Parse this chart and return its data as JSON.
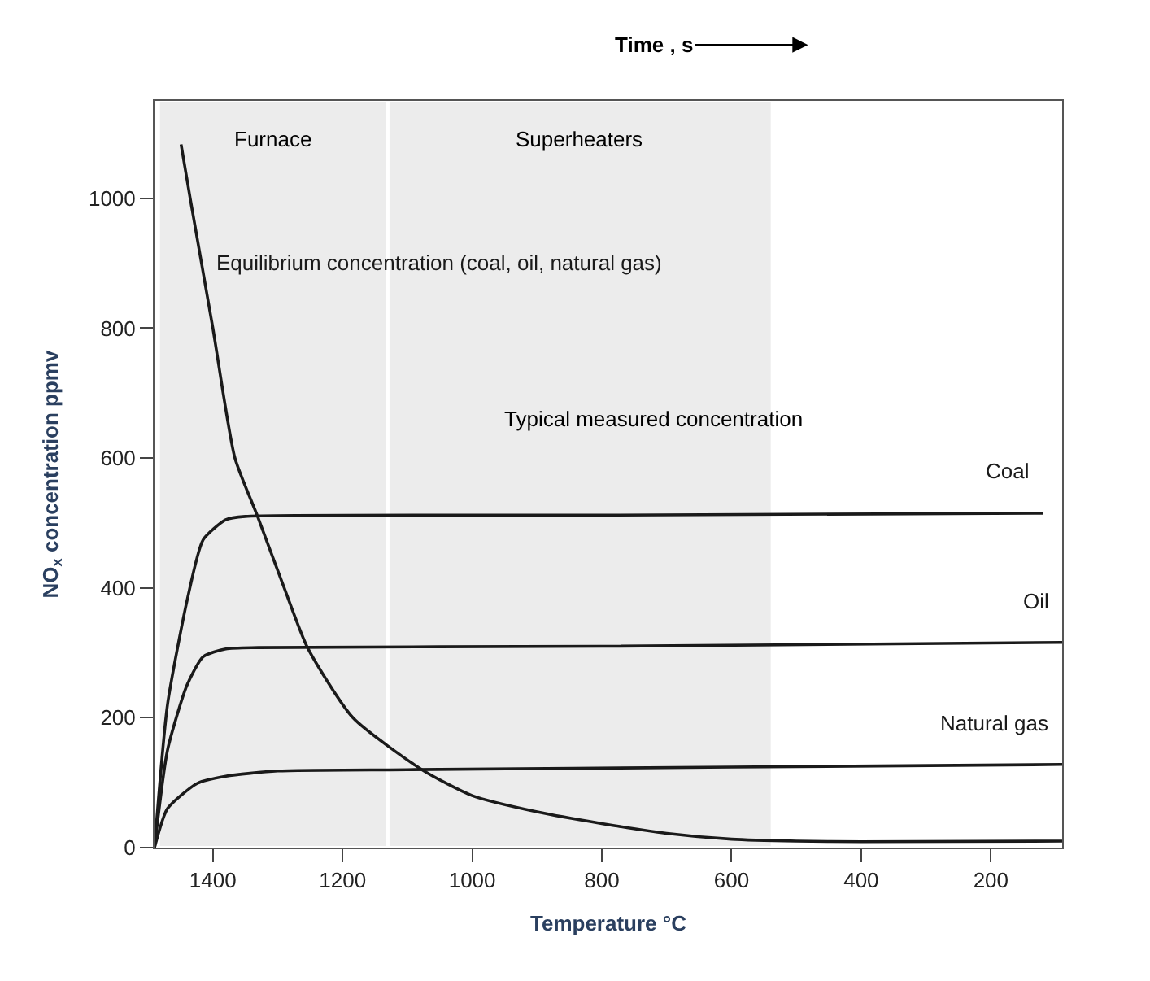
{
  "chart_data": {
    "type": "line",
    "xlabel": "Temperature °C",
    "ylabel": "NO$_{x}$ concentration ppmv",
    "xlim": [
      1490,
      90
    ],
    "xticks": [
      1400,
      1200,
      1000,
      800,
      600,
      400,
      200
    ],
    "ylim": [
      0,
      1150
    ],
    "yticks": [
      0,
      200,
      400,
      600,
      800,
      1000
    ],
    "grid": false,
    "legend": false,
    "marker": "none",
    "line_style": "solid",
    "annotations": [
      "Time , s",
      "Typical measured concentration"
    ],
    "bands": [
      {
        "axis": "x",
        "from": 1484,
        "to": 1130,
        "label": "Furnace",
        "color": "#000000"
      },
      {
        "axis": "x",
        "from": 1130,
        "to": 537,
        "label": "Superheaters",
        "color": "#000000"
      }
    ],
    "series": [
      {
        "name": "Equilibrium concentration (coal, oil, natural gas)",
        "color": "#1a1a1a",
        "x": [
          1449,
          1435,
          1400,
          1366,
          1331,
          1290,
          1254,
          1184,
          1076,
          1000,
          900,
          800,
          700,
          600,
          500,
          400,
          90
        ],
        "values": [
          1083,
          1000,
          800,
          600,
          510,
          400,
          308,
          200,
          119,
          80,
          55,
          37,
          22,
          13,
          10,
          9,
          10
        ]
      },
      {
        "name": "Coal",
        "color": "#1a1a1a",
        "x": [
          1490,
          1470,
          1439,
          1415,
          1380,
          1350,
          800,
          120
        ],
        "values": [
          0,
          220,
          384,
          474,
          505,
          510,
          512,
          515
        ]
      },
      {
        "name": "Oil",
        "color": "#1a1a1a",
        "x": [
          1490,
          1470,
          1440,
          1415,
          1380,
          1330,
          800,
          90
        ],
        "values": [
          0,
          150,
          250,
          294,
          306,
          308,
          310,
          316
        ]
      },
      {
        "name": "Natural gas",
        "color": "#1a1a1a",
        "x": [
          1490,
          1470,
          1424,
          1380,
          1300,
          1100,
          600,
          90
        ],
        "values": [
          0,
          60,
          99,
          110,
          118,
          120,
          124,
          128
        ]
      }
    ]
  }
}
